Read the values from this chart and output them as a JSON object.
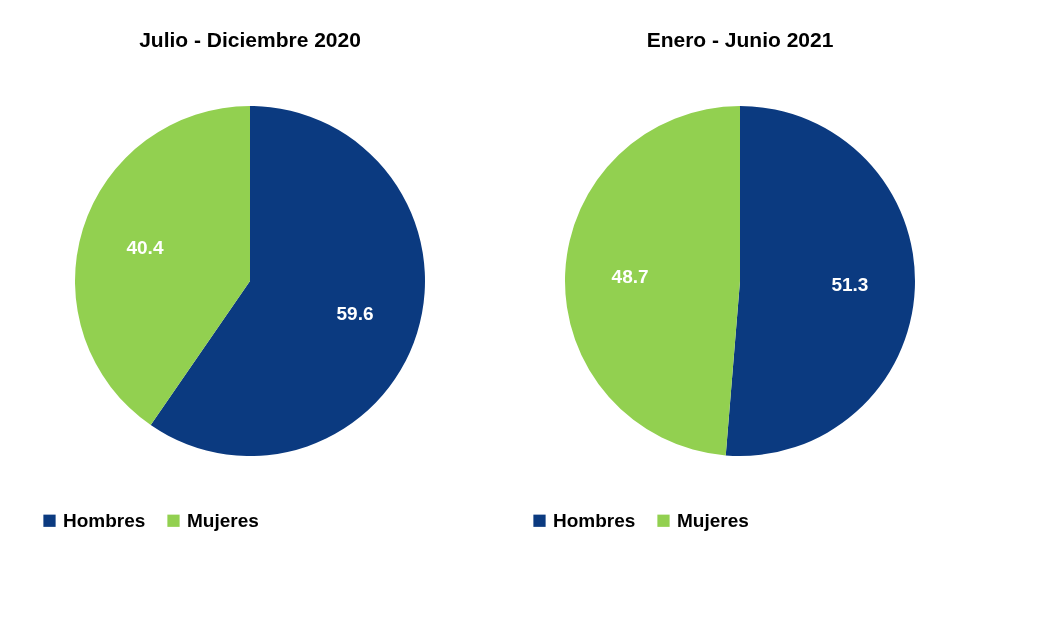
{
  "chart_data": [
    {
      "type": "pie",
      "title": "Julio - Diciembre 2020",
      "categories": [
        "Hombres",
        "Mujeres"
      ],
      "values": [
        59.6,
        40.4
      ],
      "colors": [
        "#0b3a80",
        "#92d050"
      ],
      "data_labels": true,
      "legend": "bottom"
    },
    {
      "type": "pie",
      "title": "Enero - Junio 2021",
      "categories": [
        "Hombres",
        "Mujeres"
      ],
      "values": [
        51.3,
        48.7
      ],
      "colors": [
        "#0b3a80",
        "#92d050"
      ],
      "data_labels": true,
      "legend": "bottom"
    }
  ]
}
